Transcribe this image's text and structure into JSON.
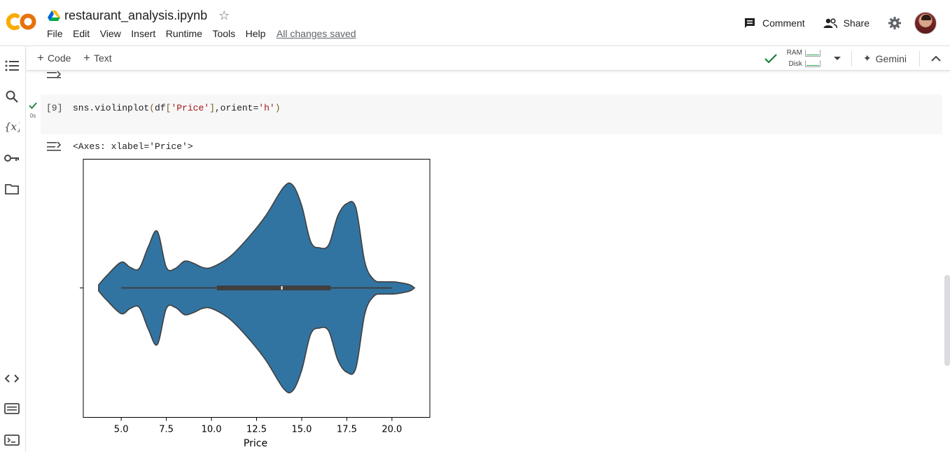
{
  "header": {
    "doc_title": "restaurant_analysis.ipynb",
    "menu": [
      "File",
      "Edit",
      "View",
      "Insert",
      "Runtime",
      "Tools",
      "Help"
    ],
    "save_status": "All changes saved",
    "comment_label": "Comment",
    "share_label": "Share"
  },
  "toolbar": {
    "add_code": "Code",
    "add_text": "Text",
    "ram_label": "RAM",
    "disk_label": "Disk",
    "gemini_label": "Gemini"
  },
  "cell": {
    "exec_count": "[9]",
    "exec_time": "0s",
    "code_prefix": "sns.violinplot",
    "code_paren_open": "(",
    "code_df": "df",
    "code_bracket_open": "[",
    "code_arg": "'Price'",
    "code_bracket_close": "]",
    "code_orient": ",orient=",
    "code_orient_val": "'h'",
    "code_paren_close": ")",
    "output_text": "<Axes: xlabel='Price'>"
  },
  "chart_data": {
    "type": "violin",
    "orientation": "horizontal",
    "variable": "Price",
    "xlabel": "Price",
    "xticks": [
      5.0,
      7.5,
      10.0,
      12.5,
      15.0,
      17.5,
      20.0
    ],
    "xtick_labels": [
      "5.0",
      "7.5",
      "10.0",
      "12.5",
      "15.0",
      "17.5",
      "20.0"
    ],
    "xlim": [
      2.9,
      22.1
    ],
    "color": "#3274a1",
    "density_profile": {
      "price": [
        3.75,
        4.2,
        5.0,
        5.5,
        6.0,
        6.5,
        7.0,
        7.5,
        8.0,
        8.5,
        9.0,
        9.5,
        10.0,
        11.0,
        12.0,
        13.0,
        14.0,
        14.5,
        15.0,
        15.5,
        16.0,
        16.5,
        17.0,
        17.5,
        18.0,
        18.5,
        19.0,
        19.5,
        20.0,
        20.5,
        21.0,
        21.25
      ],
      "half_width": [
        0.03,
        0.12,
        0.25,
        0.2,
        0.19,
        0.4,
        0.55,
        0.2,
        0.19,
        0.26,
        0.24,
        0.2,
        0.2,
        0.3,
        0.48,
        0.7,
        0.98,
        1.0,
        0.8,
        0.45,
        0.39,
        0.42,
        0.7,
        0.82,
        0.78,
        0.25,
        0.08,
        0.06,
        0.06,
        0.05,
        0.03,
        0.0
      ]
    },
    "box": {
      "whisker_low": 5.0,
      "q1": 10.3,
      "median": 13.9,
      "q3": 16.6,
      "whisker_high": 20.0
    }
  }
}
